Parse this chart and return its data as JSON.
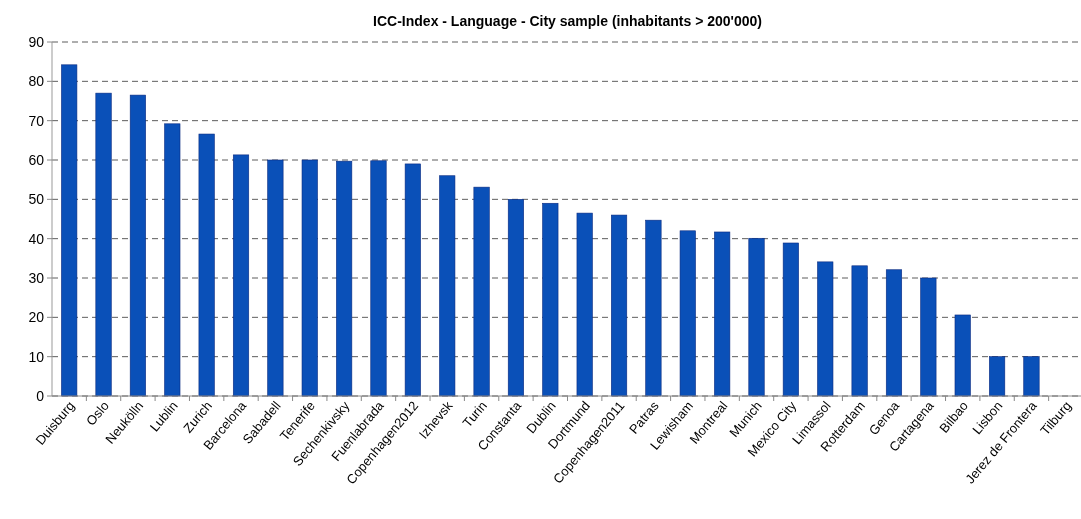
{
  "chart_data": {
    "type": "bar",
    "title": "ICC-Index - Language - City sample (inhabitants > 200'000)",
    "categories": [
      "Duisburg",
      "Oslo",
      "Neukölln",
      "Lublin",
      "Zurich",
      "Barcelona",
      "Sabadell",
      "Tenerife",
      "Sechenkivsky",
      "Fuenlabrada",
      "Copenhagen2012",
      "Izhevsk",
      "Turin",
      "Constanta",
      "Dublin",
      "Dortmund",
      "Copenhagen2011",
      "Patras",
      "Lewisham",
      "Montreal",
      "Munich",
      "Mexico City",
      "Limassol",
      "Rotterdam",
      "Genoa",
      "Cartagena",
      "Bilbao",
      "Lisbon",
      "Jerez de Frontera",
      "Tilburg"
    ],
    "values": [
      84.2,
      77,
      76.5,
      69.2,
      66.6,
      61.3,
      60,
      60,
      59.7,
      59.8,
      59,
      56,
      53.1,
      50,
      49,
      46.5,
      46,
      44.7,
      42,
      41.7,
      40.1,
      38.9,
      34.1,
      33.1,
      32.1,
      30,
      20.6,
      10,
      10,
      0
    ],
    "color": "#0a50b8",
    "ylim": [
      0,
      90
    ],
    "yticks": [
      0,
      10,
      20,
      30,
      40,
      50,
      60,
      70,
      80,
      90
    ],
    "grid": "y"
  }
}
